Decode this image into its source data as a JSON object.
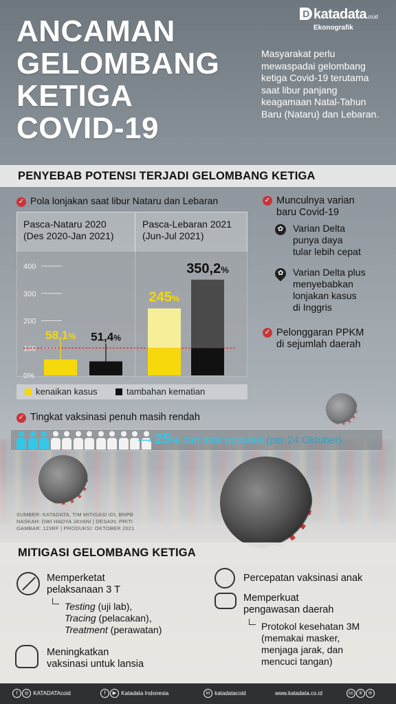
{
  "brand": {
    "logo_letter": "D",
    "name": "katadata",
    "suffix": ".co.id",
    "section": "Ekonografik"
  },
  "title": [
    "ANCAMAN",
    "GELOMBANG",
    "KETIGA",
    "COVID-19"
  ],
  "lead": "Masyarakat perlu mewaspadai gelombang ketiga Covid-19 terutama saat libur panjang keagamaan Natal-Tahun Baru (Nataru) dan Lebaran.",
  "causes": {
    "heading": "PENYEBAB POTENSI TERJADI GELOMBANG KETIGA",
    "pattern_title": "Pola lonjakan saat libur Nataru dan Lebaran",
    "new_variant": {
      "title": [
        "Munculnya varian",
        "baru Covid-19"
      ],
      "items": [
        {
          "icon": "virus-icon",
          "lines": [
            "Varian Delta",
            "punya daya",
            "tular lebih cepat"
          ]
        },
        {
          "icon": "location-virus-icon",
          "lines": [
            "Varian Delta plus",
            "menyebabkan",
            "lonjakan kasus",
            "di Inggris"
          ]
        }
      ]
    },
    "ppkm": {
      "title": [
        "Pelonggaran PPKM",
        "di sejumlah daerah"
      ]
    }
  },
  "chart_data": {
    "type": "bar",
    "groups": [
      {
        "label": "Pasca-Nataru 2020",
        "sublabel": "(Des 2020-Jan 2021)"
      },
      {
        "label": "Pasca-Lebaran 2021",
        "sublabel": "(Jun-Jul 2021)"
      }
    ],
    "series": [
      {
        "name": "kenaikan kasus",
        "color": "#f5d90a",
        "values": [
          58.1,
          245
        ]
      },
      {
        "name": "tambahan kematian",
        "color": "#111111",
        "values": [
          51.4,
          350.2
        ]
      }
    ],
    "value_labels": [
      [
        "58,1%",
        "51,4%"
      ],
      [
        "245%",
        "350,2%"
      ]
    ],
    "yticks": [
      "0%",
      "100",
      "200",
      "300",
      "400"
    ],
    "ylim": [
      0,
      400
    ],
    "reference_line": 100
  },
  "vaccination": {
    "title": "Tingkat vaksinasi penuh masih rendah",
    "vaccinated_people": 3,
    "total_people": 12,
    "value": "25",
    "value_unit": "%",
    "text": " dari total populasi",
    "note": " (per 24 Oktober)"
  },
  "source": {
    "lines": [
      "SUMBER: KATADATA, TIM MITIGASI IDI, BNPB",
      "NASKAH: DWI HADYA JAYANI | DESAIN: PRITI",
      "GAMBAR: 123RF | PRODUKSI: OKTOBER 2021"
    ]
  },
  "mitigation": {
    "heading": "MITIGASI GELOMBANG KETIGA",
    "items": [
      {
        "title": [
          "Memperketat",
          "pelaksanaan 3 T"
        ]
      },
      {
        "title": [
          "Meningkatkan",
          "vaksinasi untuk lansia"
        ]
      },
      {
        "title": [
          "Percepatan vaksinasi anak"
        ]
      },
      {
        "title": [
          "Memperkuat",
          "pengawasan daerah"
        ]
      }
    ],
    "three_t": [
      {
        "term": "Testing",
        "desc": " (uji lab),"
      },
      {
        "term": "Tracing",
        "desc": " (pelacakan),"
      },
      {
        "term": "Treatment",
        "desc": " (perawatan)"
      }
    ],
    "protocol": [
      "Protokol kesehatan 3M",
      "(memakai masker,",
      "menjaga jarak, dan",
      "mencuci tangan)"
    ]
  },
  "footer": {
    "twitter_instagram": "KATADATAcoid",
    "facebook_youtube": "Katadata Indonesia",
    "linkedin": "katadatacoid",
    "website": "www.katadata.co.id"
  }
}
